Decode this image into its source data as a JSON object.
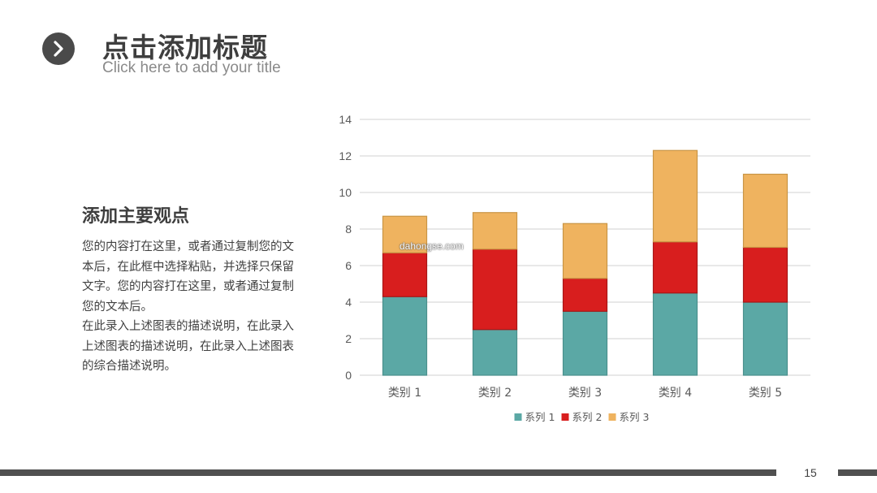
{
  "header": {
    "title_cn": "点击添加标题",
    "title_en": "Click here to add your title",
    "icon": "chevron-right-icon"
  },
  "content": {
    "subtitle": "添加主要观点",
    "paragraphs": [
      "您的内容打在这里，或者通过复制您的文本后，在此框中选择粘贴，并选择只保留文字。您的内容打在这里，或者通过复制您的文本后。",
      "在此录入上述图表的描述说明，在此录入上述图表的描述说明，在此录入上述图表的综合描述说明。"
    ]
  },
  "watermark": "dahongse.com",
  "page_number": "15",
  "colors": {
    "series1": "#5BA8A5",
    "series2": "#D81E1E",
    "series3": "#EFB35F",
    "title": "#3e3e3e",
    "footer": "#505050"
  },
  "chart_data": {
    "type": "bar",
    "stacked": true,
    "categories": [
      "类别 1",
      "类别 2",
      "类别 3",
      "类别 4",
      "类别 5"
    ],
    "series": [
      {
        "name": "系列 1",
        "values": [
          4.3,
          2.5,
          3.5,
          4.5,
          4.0
        ]
      },
      {
        "name": "系列 2",
        "values": [
          2.4,
          4.4,
          1.8,
          2.8,
          3.0
        ]
      },
      {
        "name": "系列 3",
        "values": [
          2.0,
          2.0,
          3.0,
          5.0,
          4.0
        ]
      }
    ],
    "ylim": [
      0,
      14
    ],
    "yticks": [
      "0",
      "2",
      "4",
      "6",
      "8",
      "10",
      "12",
      "14"
    ],
    "grid": true,
    "legend": "bottom"
  }
}
